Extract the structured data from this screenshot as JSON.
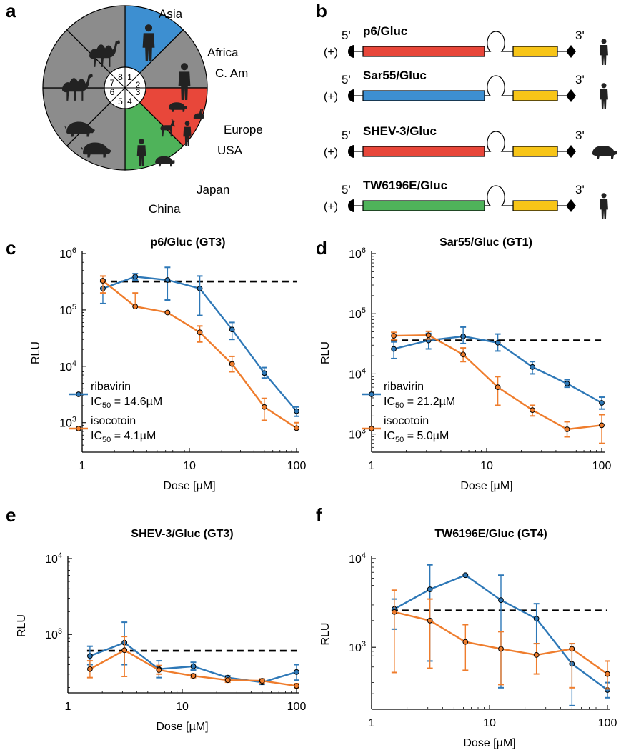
{
  "panel_labels": [
    "a",
    "b",
    "c",
    "d",
    "e",
    "f"
  ],
  "panel_a": {
    "sectors": [
      "1",
      "2",
      "3",
      "4",
      "5",
      "6",
      "7",
      "8"
    ],
    "region_labels": [
      "Asia",
      "Africa",
      "C. Am",
      "Europe",
      "USA",
      "Japan",
      "China"
    ],
    "colors": {
      "asia": "#3d8fd1",
      "europe": "#e8473a",
      "japan": "#4fb35a",
      "grey": "#8c8c8c"
    }
  },
  "panel_b": {
    "constructs": [
      {
        "name": "p6/Gluc",
        "five": "5'",
        "three": "3'",
        "plus": "(+)",
        "color": "#e8473a",
        "host": "human-icon"
      },
      {
        "name": "Sar55/Gluc",
        "five": "5'",
        "three": "3'",
        "plus": "(+)",
        "color": "#3d8fd1",
        "host": "human-icon"
      },
      {
        "name": "SHEV-3/Gluc",
        "five": "5'",
        "three": "3'",
        "plus": "(+)",
        "color": "#e8473a",
        "host": "pig-icon"
      },
      {
        "name": "TW6196E/Gluc",
        "five": "5'",
        "three": "3'",
        "plus": "(+)",
        "color": "#4fb35a",
        "host": "human-icon"
      }
    ],
    "gluc_color": "#f7c518"
  },
  "colors": {
    "ribavirin": "#2e78b7",
    "isocotoin": "#ef7d2d",
    "baseline": "#000000"
  },
  "chart_data": [
    {
      "id": "c",
      "type": "line",
      "title": "p6/Gluc (GT3)",
      "xlabel": "Dose [µM]",
      "ylabel": "RLU",
      "xscale": "log",
      "yscale": "log",
      "xlim": [
        1,
        100
      ],
      "ylim": [
        300,
        1000000
      ],
      "xticks": [
        1,
        10,
        100
      ],
      "xtick_labels": [
        "1",
        "10",
        "100"
      ],
      "yticks": [
        1000,
        10000,
        100000,
        1000000
      ],
      "ytick_labels": [
        "10^3",
        "10^4",
        "10^5",
        "10^6"
      ],
      "baseline": 320000,
      "x": [
        1.56,
        3.125,
        6.25,
        12.5,
        25,
        50,
        100
      ],
      "series": [
        {
          "name": "ribavirin",
          "key": "ribavirin",
          "ic50_value": "14.6µM",
          "values": [
            240000,
            390000,
            340000,
            240000,
            45000,
            7600,
            1600
          ],
          "err_low": [
            130000,
            340000,
            150000,
            80000,
            30000,
            6200,
            1300
          ],
          "err_high": [
            340000,
            440000,
            570000,
            400000,
            60000,
            9500,
            1900
          ]
        },
        {
          "name": "isocotoin",
          "key": "isocotoin",
          "ic50_value": "4.1µM",
          "values": [
            330000,
            115000,
            90000,
            40000,
            11000,
            1900,
            800
          ],
          "err_low": [
            200000,
            115000,
            90000,
            27000,
            8000,
            1100,
            800
          ],
          "err_high": [
            400000,
            200000,
            90000,
            52000,
            15000,
            2700,
            1000
          ]
        }
      ],
      "legend_loc": "lower-left"
    },
    {
      "id": "d",
      "type": "line",
      "title": "Sar55/Gluc (GT1)",
      "xlabel": "Dose [µM]",
      "ylabel": "RLU",
      "xscale": "log",
      "yscale": "log",
      "xlim": [
        1,
        100
      ],
      "ylim": [
        500,
        1000000
      ],
      "xticks": [
        1,
        10,
        100
      ],
      "xtick_labels": [
        "1",
        "10",
        "100"
      ],
      "yticks": [
        1000,
        10000,
        100000,
        1000000
      ],
      "ytick_labels": [
        "10^3",
        "10^4",
        "10^5",
        "10^6"
      ],
      "baseline": 36000,
      "x": [
        1.56,
        3.125,
        6.25,
        12.5,
        25,
        50,
        100
      ],
      "series": [
        {
          "name": "ribavirin",
          "key": "ribavirin",
          "ic50_value": "21.2µM",
          "values": [
            26000,
            36000,
            42000,
            33000,
            13000,
            6900,
            3300
          ],
          "err_low": [
            18000,
            26000,
            32000,
            24000,
            10000,
            6000,
            2600
          ],
          "err_high": [
            34000,
            47000,
            60000,
            46000,
            16000,
            8000,
            4100
          ]
        },
        {
          "name": "isocotoin",
          "key": "isocotoin",
          "ic50_value": "5.0µM",
          "values": [
            43000,
            44000,
            21000,
            6000,
            2500,
            1200,
            1400
          ],
          "err_low": [
            37000,
            38000,
            16000,
            3000,
            2000,
            900,
            700
          ],
          "err_high": [
            49000,
            51000,
            27000,
            9000,
            3000,
            1600,
            2100
          ]
        }
      ],
      "legend_loc": "lower-left"
    },
    {
      "id": "e",
      "type": "line",
      "title": "SHEV-3/Gluc (GT3)",
      "xlabel": "Dose [µM]",
      "ylabel": "RLU",
      "xscale": "log",
      "yscale": "log",
      "xlim": [
        1,
        100
      ],
      "ylim": [
        170,
        10000
      ],
      "xticks": [
        1,
        10,
        100
      ],
      "xtick_labels": [
        "1",
        "10",
        "100"
      ],
      "yticks": [
        1000,
        10000
      ],
      "ytick_labels": [
        "10^3",
        "10^4"
      ],
      "baseline": 610,
      "x": [
        1.56,
        3.125,
        6.25,
        12.5,
        25,
        50,
        100
      ],
      "series": [
        {
          "name": "ribavirin",
          "key": "ribavirin",
          "values": [
            520,
            780,
            350,
            380,
            270,
            235,
            320
          ],
          "err_low": [
            400,
            400,
            270,
            340,
            260,
            220,
            250
          ],
          "err_high": [
            700,
            1450,
            450,
            430,
            285,
            255,
            400
          ]
        },
        {
          "name": "isocotoin",
          "key": "isocotoin",
          "values": [
            350,
            620,
            340,
            285,
            250,
            245,
            210
          ],
          "err_low": [
            270,
            280,
            300,
            270,
            235,
            230,
            195
          ],
          "err_high": [
            450,
            940,
            390,
            300,
            265,
            260,
            225
          ]
        }
      ]
    },
    {
      "id": "f",
      "type": "line",
      "title": "TW6196E/Gluc (GT4)",
      "xlabel": "Dose [µM]",
      "ylabel": "RLU",
      "xscale": "log",
      "yscale": "log",
      "xlim": [
        1,
        100
      ],
      "ylim": [
        200,
        10000
      ],
      "xticks": [
        1,
        10,
        100
      ],
      "xtick_labels": [
        "1",
        "10",
        "100"
      ],
      "yticks": [
        1000,
        10000
      ],
      "ytick_labels": [
        "10^3",
        "10^4"
      ],
      "baseline": 2600,
      "x": [
        1.56,
        3.125,
        6.25,
        12.5,
        25,
        50,
        100
      ],
      "series": [
        {
          "name": "ribavirin",
          "key": "ribavirin",
          "values": [
            2700,
            4500,
            6500,
            3400,
            2100,
            650,
            330
          ],
          "err_low": [
            1600,
            700,
            6500,
            350,
            1100,
            220,
            270
          ],
          "err_high": [
            3500,
            8500,
            6500,
            6500,
            3100,
            1100,
            400
          ]
        },
        {
          "name": "isocotoin",
          "key": "isocotoin",
          "values": [
            2500,
            2000,
            1150,
            960,
            820,
            960,
            500
          ],
          "err_low": [
            520,
            580,
            550,
            380,
            500,
            350,
            340
          ],
          "err_high": [
            4400,
            3500,
            1800,
            1500,
            1100,
            1100,
            700
          ]
        }
      ]
    }
  ]
}
